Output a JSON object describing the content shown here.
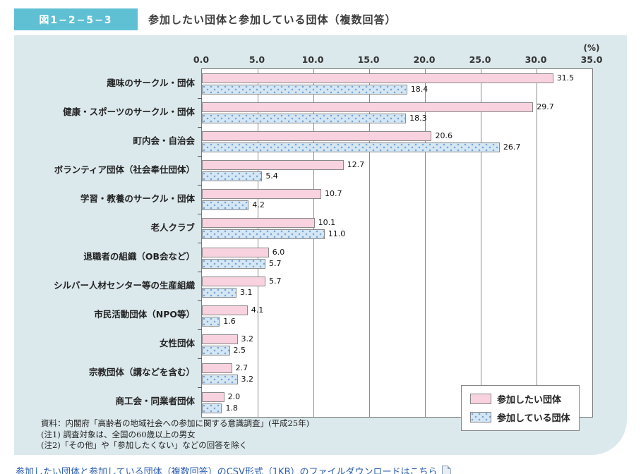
{
  "figure": {
    "tag": "図1−2−5−3",
    "title": "参加したい団体と参加している団体（複数回答）"
  },
  "chart_data": {
    "type": "bar",
    "orientation": "horizontal",
    "title": "参加したい団体と参加している団体（複数回答）",
    "unit_label": "(%)",
    "xlabel": "",
    "ylabel": "",
    "xlim": [
      0,
      35
    ],
    "x_ticks": [
      "0.0",
      "5.0",
      "10.0",
      "15.0",
      "20.0",
      "25.0",
      "30.0",
      "35.0"
    ],
    "grid": true,
    "legend_position": "bottom-right",
    "categories": [
      "趣味のサークル・団体",
      "健康・スポーツのサークル・団体",
      "町内会・自治会",
      "ボランティア団体（社会奉仕団体）",
      "学習・教養のサークル・団体",
      "老人クラブ",
      "退職者の組織（OB会など）",
      "シルバー人材センター等の生産組織",
      "市民活動団体（NPO等）",
      "女性団体",
      "宗教団体（講などを含む）",
      "商工会・同業者団体"
    ],
    "series": [
      {
        "name": "参加したい団体",
        "color": "#f8d2df",
        "values": [
          31.5,
          29.7,
          20.6,
          12.7,
          10.7,
          10.1,
          6.0,
          5.7,
          4.1,
          3.2,
          2.7,
          2.0
        ]
      },
      {
        "name": "参加している団体",
        "color": "#d5e6f4",
        "dot_color": "#76a5d6",
        "values": [
          18.4,
          18.3,
          26.7,
          5.4,
          4.2,
          11.0,
          5.7,
          3.1,
          1.6,
          2.5,
          3.2,
          1.8
        ]
      }
    ]
  },
  "notes": {
    "source": "資料：内閣府「高齢者の地域社会への参加に関する意識調査」(平成25年)",
    "note1": "(注1) 調査対象は、全国の60歳以上の男女",
    "note2": "(注2)「その他」や「参加したくない」などの回答を除く"
  },
  "footer_link": {
    "text": "参加したい団体と参加している団体（複数回答）のCSV形式（1KB）のファイルダウンロードはこちら"
  },
  "colors": {
    "header_tag_bg": "#5fc0d3",
    "panel_bg": "#dbe8ec",
    "plot_bg": "#ffffff",
    "pink_bar": "#f8d2df",
    "blue_bar": "#d5e6f4",
    "blue_dot": "#76a5d6",
    "bar_border": "#8a8a8a",
    "gridline": "#8c8c8c",
    "link_text": "#2a5db0"
  }
}
